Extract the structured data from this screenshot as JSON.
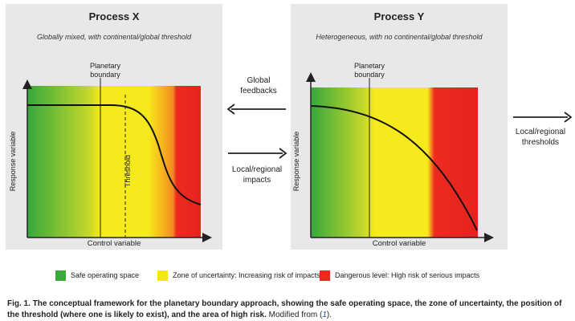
{
  "panel_x": {
    "title": "Process X",
    "subtitle": "Globally mixed, with continental/global threshold",
    "boundary_label_1": "Planetary",
    "boundary_label_2": "boundary",
    "threshold_label": "Threshold",
    "y_axis_label": "Response variable",
    "x_axis_label": "Control variable"
  },
  "panel_y": {
    "title": "Process Y",
    "subtitle": "Heterogeneous, with no continental/global threshold",
    "boundary_label_1": "Planetary",
    "boundary_label_2": "boundary",
    "y_axis_label": "Response variable",
    "x_axis_label": "Control variable"
  },
  "arrows": {
    "global_feedbacks_1": "Global",
    "global_feedbacks_2": "feedbacks",
    "local_impacts_1": "Local/regional",
    "local_impacts_2": "impacts",
    "local_thresholds_1": "Local/regional",
    "local_thresholds_2": "thresholds"
  },
  "legend": [
    {
      "label": "Safe operating space",
      "color": "#3aaa3a"
    },
    {
      "label": "Zone of uncertainty: Increasing risk of impacts",
      "color": "#f5e617"
    },
    {
      "label": "Dangerous level: High risk of serious impacts",
      "color": "#ee2a1f"
    }
  ],
  "caption": {
    "bold": "Fig. 1. The conceptual framework for the planetary boundary approach, showing the safe operating space, the zone of uncertainty, the position of the threshold (where one is likely to exist), and the area of high risk.",
    "normal": " Modified from (",
    "ref": "1",
    "end": ")."
  }
}
